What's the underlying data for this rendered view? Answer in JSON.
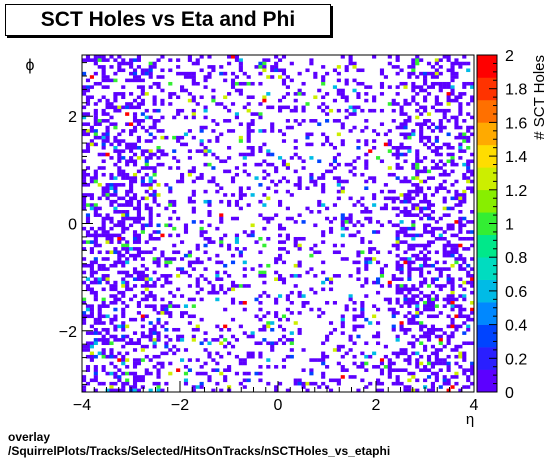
{
  "chart_data": {
    "type": "heatmap",
    "title": "SCT Holes vs Eta and Phi",
    "xlabel": "η",
    "ylabel": "ϕ",
    "zlabel": "# SCT Holes",
    "xlim": [
      -4,
      4
    ],
    "ylim": [
      -3.1416,
      3.1416
    ],
    "zlim": [
      0,
      2
    ],
    "x_ticks": [
      "−4",
      "−2",
      "0",
      "2",
      "4"
    ],
    "y_ticks": [
      "−2",
      "0",
      "2"
    ],
    "z_ticks": [
      "0",
      "0.2",
      "0.4",
      "0.6",
      "0.8",
      "1",
      "1.2",
      "1.4",
      "1.6",
      "1.8",
      "2"
    ],
    "palette": [
      "#5c00ff",
      "#2a1fff",
      "#0044ff",
      "#0088ff",
      "#00bbe6",
      "#00dcc0",
      "#00e88a",
      "#33ee33",
      "#88ee00",
      "#ccee00",
      "#ffdd00",
      "#ffaa00",
      "#ff7000",
      "#ff3300",
      "#ff0000"
    ],
    "bins": {
      "nx": 100,
      "ny": 100
    }
  },
  "footer": {
    "line1": "overlay",
    "line2": "/SquirrelPlots/Tracks/Selected/HitsOnTracks/nSCTHoles_vs_etaphi"
  }
}
